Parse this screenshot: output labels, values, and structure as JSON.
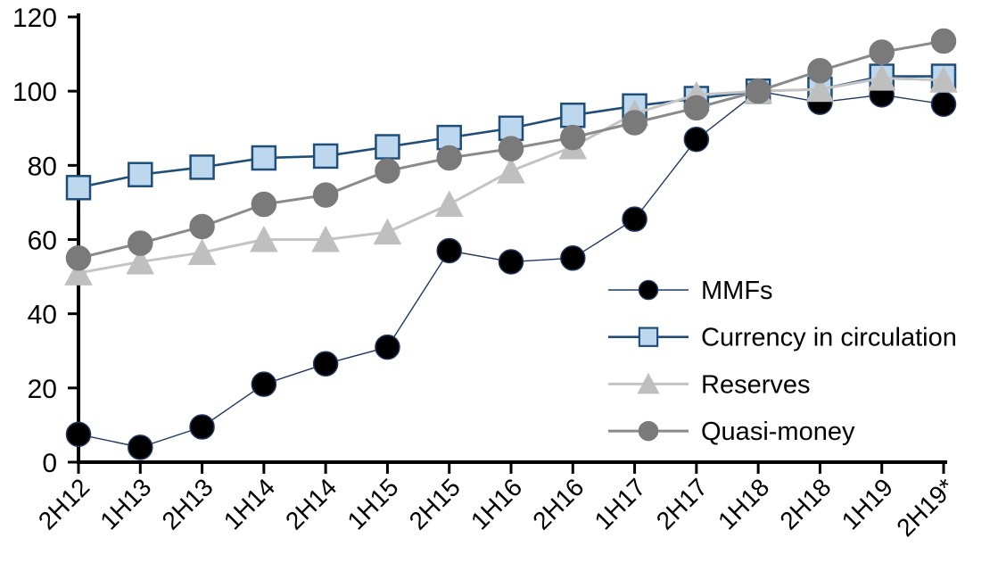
{
  "chart_data": {
    "type": "line",
    "title": "",
    "xlabel": "",
    "ylabel": "",
    "grid": false,
    "legend_position": "inside-right",
    "ylim": [
      0,
      120
    ],
    "yticks": [
      0,
      20,
      40,
      60,
      80,
      100,
      120
    ],
    "ytick_labels": [
      "0",
      "20",
      "40",
      "60",
      "80",
      "100",
      "120"
    ],
    "categories": [
      "2H12",
      "1H13",
      "2H13",
      "1H14",
      "2H14",
      "1H15",
      "2H15",
      "1H16",
      "2H16",
      "1H17",
      "2H17",
      "1H18",
      "2H18",
      "1H19",
      "2H19*"
    ],
    "index_note": "all series equal 100 at 1H18",
    "series": [
      {
        "name": "MMFs",
        "marker": "circle",
        "marker_fill": "#000000",
        "marker_stroke": "#1f3864",
        "line_color": "#1f3864",
        "line_width": 1.4,
        "values": [
          7.5,
          4,
          9.5,
          21,
          26.5,
          31,
          57,
          54,
          55,
          65.5,
          87,
          100,
          97,
          99,
          96.5
        ]
      },
      {
        "name": "Currency in circulation",
        "marker": "square",
        "marker_fill": "#bdd7ee",
        "marker_stroke": "#1f4e79",
        "line_color": "#1f4e79",
        "line_width": 2.6,
        "values": [
          74,
          77.5,
          79.5,
          82,
          82.5,
          85,
          87.5,
          90,
          93.5,
          96,
          98,
          100,
          100.5,
          104,
          104
        ]
      },
      {
        "name": "Reserves",
        "marker": "triangle",
        "marker_fill": "#bfbfbf",
        "marker_stroke": "#bfbfbf",
        "line_color": "#c3c3c3",
        "line_width": 3,
        "values": [
          51,
          54,
          56.5,
          60,
          60,
          62,
          69.5,
          78.5,
          85,
          94,
          99,
          100,
          100.5,
          103.5,
          103
        ]
      },
      {
        "name": "Quasi-money",
        "marker": "circle",
        "marker_fill": "#7a7a7a",
        "marker_stroke": "#7a7a7a",
        "line_color": "#8a8a8a",
        "line_width": 3,
        "values": [
          55,
          59,
          63.5,
          69.5,
          72,
          78.5,
          82,
          84.5,
          87.5,
          91.5,
          95.5,
          100,
          105.5,
          110.5,
          113.5
        ]
      }
    ],
    "colors": {
      "axis": "#000000",
      "background": "#ffffff"
    }
  }
}
